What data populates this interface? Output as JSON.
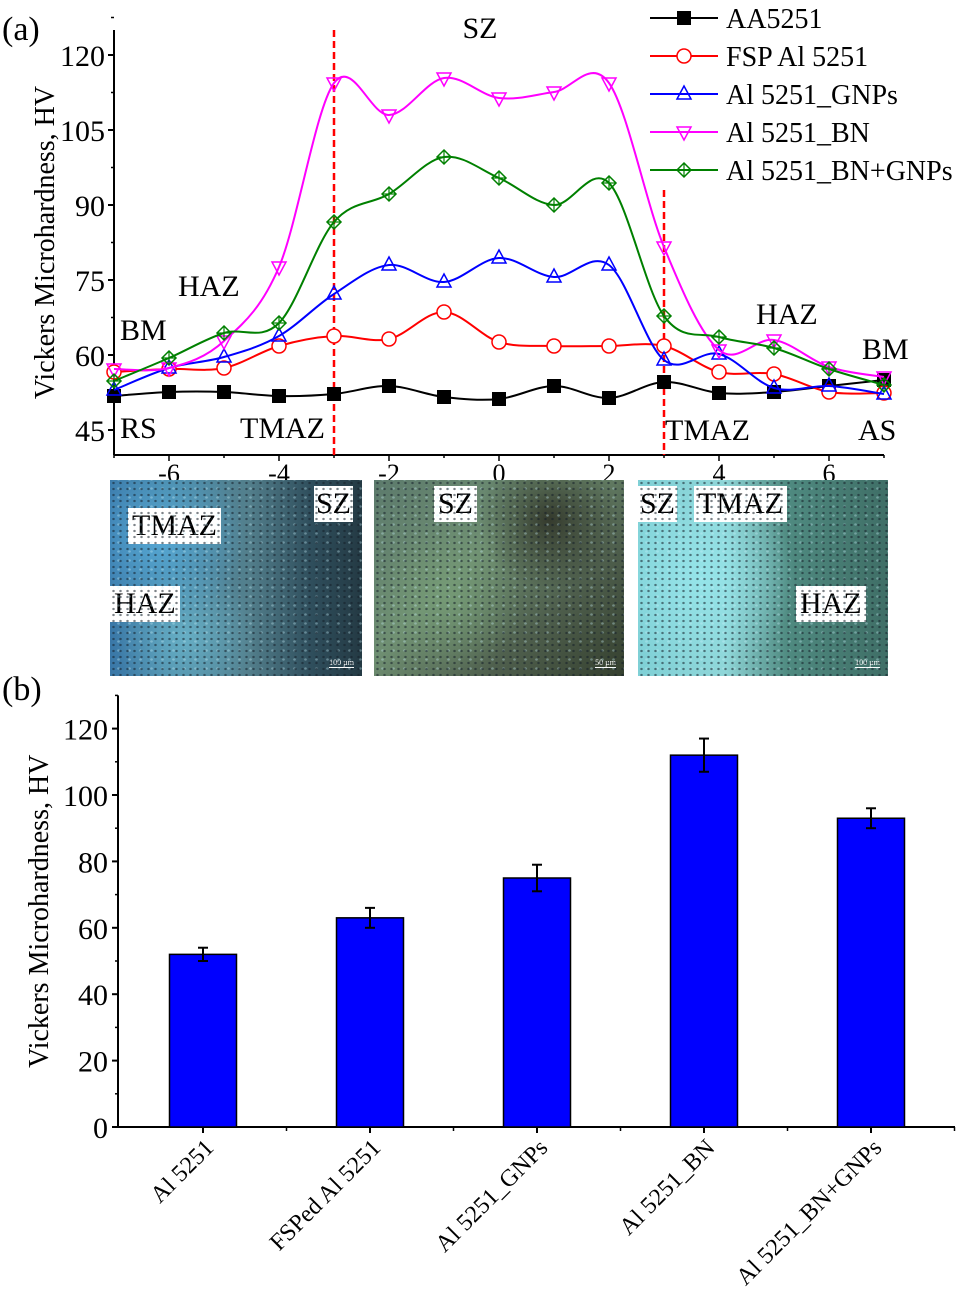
{
  "panel_a": {
    "label": "(a)",
    "zone_labels": {
      "sz_top": "SZ",
      "haz_left": "HAZ",
      "bm_left": "BM",
      "rs": "RS",
      "tmaz_left": "TMAZ",
      "haz_right": "HAZ",
      "bm_right": "BM",
      "tmaz_right": "TMAZ",
      "as": "AS"
    },
    "micrographs": [
      {
        "labels": [
          "TMAZ",
          "SZ",
          "HAZ"
        ],
        "scale_bar": "100 µm"
      },
      {
        "labels": [
          "SZ"
        ],
        "scale_bar": "50 µm"
      },
      {
        "labels": [
          "SZ",
          "TMAZ",
          "HAZ"
        ],
        "scale_bar": "100 µm"
      }
    ]
  },
  "panel_b": {
    "label": "(b)"
  },
  "chart_data": [
    {
      "type": "line",
      "title": "",
      "xlabel": "",
      "ylabel": "Vickers Microhardness, HV",
      "xlim": [
        -7,
        7
      ],
      "ylim": [
        40,
        125
      ],
      "xticks": [
        -6,
        -4,
        -2,
        0,
        2,
        4,
        6
      ],
      "yticks": [
        45,
        60,
        75,
        90,
        105,
        120
      ],
      "grid": false,
      "legend_position": "top-right",
      "vlines": [
        {
          "x": -3,
          "style": "dashed",
          "color": "#ff0000"
        },
        {
          "x": 3,
          "style": "dashed",
          "color": "#ff0000"
        }
      ],
      "x": [
        -7,
        -6,
        -5,
        -4,
        -3,
        -2,
        -1,
        0,
        1,
        2,
        3,
        4,
        5,
        6,
        7
      ],
      "series": [
        {
          "name": "AA5251",
          "color": "#000000",
          "marker": "filled-square",
          "values": [
            51.8,
            52.6,
            52.6,
            51.8,
            52.2,
            53.8,
            51.6,
            51.2,
            53.8,
            51.4,
            54.6,
            52.4,
            52.6,
            53.8,
            55.0
          ]
        },
        {
          "name": "FSP Al 5251",
          "color": "#ff0000",
          "marker": "open-circle",
          "values": [
            56.6,
            57.2,
            57.4,
            61.8,
            63.8,
            63.2,
            68.6,
            62.6,
            61.8,
            61.8,
            61.8,
            56.6,
            56.2,
            52.6,
            52.4
          ]
        },
        {
          "name": "Al 5251_GNPs",
          "color": "#0000ff",
          "marker": "open-triangle-up",
          "values": [
            53.0,
            57.4,
            59.6,
            63.8,
            72.2,
            78.0,
            74.6,
            79.4,
            75.6,
            78.0,
            59.0,
            60.2,
            53.4,
            53.8,
            52.2
          ]
        },
        {
          "name": "Al 5251_BN",
          "color": "#ff00ff",
          "marker": "open-triangle-down",
          "values": [
            57.2,
            57.4,
            62.8,
            77.6,
            114.4,
            108.0,
            115.4,
            111.4,
            112.6,
            114.4,
            81.6,
            61.0,
            63.0,
            57.6,
            55.6
          ]
        },
        {
          "name": "Al 5251_BN+GNPs",
          "color": "#008000",
          "marker": "crossed-diamond",
          "values": [
            54.8,
            59.4,
            64.4,
            66.4,
            86.6,
            92.2,
            99.6,
            95.4,
            90.0,
            94.4,
            67.8,
            63.6,
            61.4,
            57.2,
            54.0
          ]
        }
      ]
    },
    {
      "type": "bar",
      "title": "",
      "xlabel": "",
      "ylabel": "Vickers Microhardness, HV",
      "ylim": [
        0,
        130
      ],
      "yticks": [
        0,
        20,
        40,
        60,
        80,
        100,
        120
      ],
      "grid": false,
      "bar_color": "#0000ff",
      "categories": [
        "Al 5251",
        "FSPed Al 5251",
        "Al 5251_GNPs",
        "Al 5251_BN",
        "Al 5251_BN+GNPs"
      ],
      "values": [
        52,
        63,
        75,
        112,
        93
      ],
      "errors": [
        2,
        3,
        4,
        5,
        3
      ]
    }
  ]
}
